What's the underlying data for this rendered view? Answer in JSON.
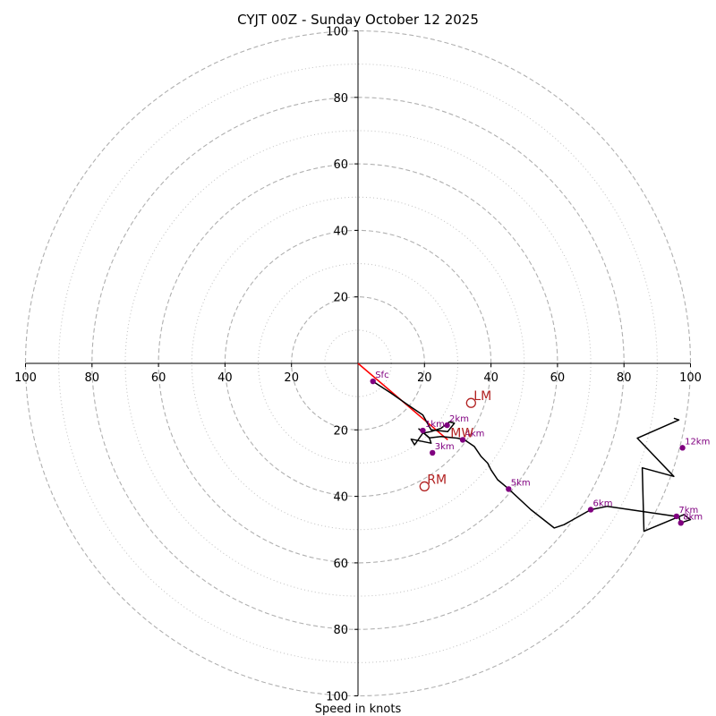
{
  "chart_data": {
    "type": "hodograph",
    "title": "CYJT 00Z - Sunday October 12 2025",
    "xlabel": "Speed in knots",
    "units": "knots",
    "xlim": [
      -100,
      100
    ],
    "ylim": [
      -100,
      100
    ],
    "ring_major": [
      20,
      40,
      60,
      80,
      100
    ],
    "ring_minor": [
      10,
      30,
      50,
      70,
      90
    ],
    "x_ticks": [
      {
        "v": -100,
        "label": "100"
      },
      {
        "v": -80,
        "label": "80"
      },
      {
        "v": -60,
        "label": "60"
      },
      {
        "v": -40,
        "label": "40"
      },
      {
        "v": -20,
        "label": "20"
      },
      {
        "v": 20,
        "label": "20"
      },
      {
        "v": 40,
        "label": "40"
      },
      {
        "v": 60,
        "label": "60"
      },
      {
        "v": 80,
        "label": "80"
      },
      {
        "v": 100,
        "label": "100"
      }
    ],
    "y_ticks": [
      {
        "v": 100,
        "label": "100"
      },
      {
        "v": 80,
        "label": "80"
      },
      {
        "v": 60,
        "label": "60"
      },
      {
        "v": 40,
        "label": "40"
      },
      {
        "v": 20,
        "label": "20"
      },
      {
        "v": -20,
        "label": "20"
      },
      {
        "v": -40,
        "label": "40"
      },
      {
        "v": -60,
        "label": "60"
      },
      {
        "v": -80,
        "label": "80"
      },
      {
        "v": -100,
        "label": "100"
      }
    ],
    "trace": [
      [
        4.5,
        -5.4
      ],
      [
        10,
        -9
      ],
      [
        15,
        -12.5
      ],
      [
        19.5,
        -15.5
      ],
      [
        22,
        -20
      ],
      [
        27,
        -20.5
      ],
      [
        29,
        -18
      ],
      [
        27.5,
        -17.6
      ],
      [
        25,
        -19.5
      ],
      [
        22,
        -20.5
      ],
      [
        19.5,
        -21
      ],
      [
        17,
        -24.5
      ],
      [
        16,
        -22.8
      ],
      [
        22,
        -24
      ],
      [
        21.5,
        -22.5
      ],
      [
        18.3,
        -19.7
      ],
      [
        21.5,
        -22.4
      ],
      [
        25,
        -22
      ],
      [
        30,
        -22.5
      ],
      [
        32,
        -23
      ],
      [
        35,
        -25
      ],
      [
        37,
        -28
      ],
      [
        39,
        -30
      ],
      [
        40,
        -32
      ],
      [
        42,
        -35
      ],
      [
        45,
        -37.5
      ],
      [
        52,
        -44
      ],
      [
        59,
        -49.5
      ],
      [
        62,
        -48.5
      ],
      [
        70,
        -44
      ],
      [
        75,
        -43
      ],
      [
        95.5,
        -46
      ],
      [
        96.5,
        -46
      ],
      [
        97,
        -48
      ],
      [
        100,
        -47
      ],
      [
        98,
        -45.5
      ],
      [
        86,
        -50.5
      ],
      [
        85.5,
        -31.4
      ],
      [
        95,
        -34
      ],
      [
        84,
        -22.5
      ],
      [
        96.5,
        -17
      ],
      [
        95,
        -16.5
      ]
    ],
    "labeled_points": [
      {
        "label": "Sfc",
        "x": 4.5,
        "y": -5.4
      },
      {
        "label": "1km",
        "x": 19.5,
        "y": -20.2
      },
      {
        "label": "2km",
        "x": 26.8,
        "y": -18.6
      },
      {
        "label": "3km",
        "x": 22.4,
        "y": -26.9
      },
      {
        "label": "4km",
        "x": 31.5,
        "y": -23.0
      },
      {
        "label": "5km",
        "x": 45.3,
        "y": -37.8
      },
      {
        "label": "6km",
        "x": 70.0,
        "y": -44.0
      },
      {
        "label": "7km",
        "x": 95.8,
        "y": -46.0
      },
      {
        "label": "8km",
        "x": 97.1,
        "y": -48.0
      },
      {
        "label": "12km",
        "x": 97.6,
        "y": -25.4
      }
    ],
    "storm_motion": [
      {
        "label": "LM",
        "x": 34.0,
        "y": -11.9
      },
      {
        "label": "MW",
        "x": 27.0,
        "y": -23.0
      },
      {
        "label": "RM",
        "x": 20.0,
        "y": -37.0
      }
    ],
    "red_vector": {
      "from": [
        0,
        0
      ],
      "to": [
        27.0,
        -23.0
      ]
    },
    "colors": {
      "trace": "#000000",
      "points": "#800080",
      "storm_motion": "#b22222",
      "vector": "#ff0000",
      "rings": "#b0b0b0"
    }
  }
}
